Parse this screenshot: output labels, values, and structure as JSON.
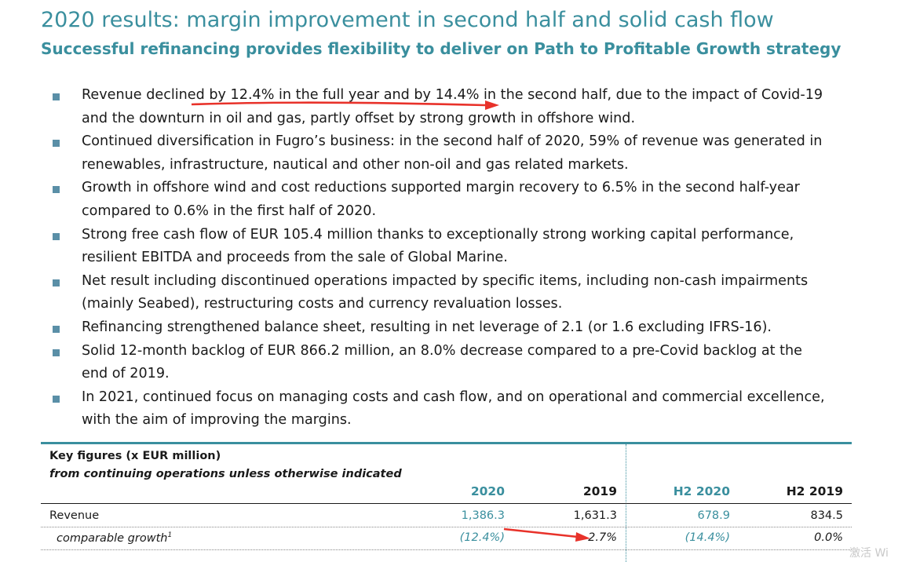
{
  "header": {
    "title": "2020 results: margin improvement in second half and solid cash flow",
    "subtitle": "Successful refinancing provides flexibility to deliver on Path to Profitable Growth strategy"
  },
  "bullets": [
    {
      "line1": "Revenue declined by 12.4% in the full year and by 14.4% in the second half, due to the impact of Covid-19",
      "line2": "and the downturn in oil and gas, partly offset by strong growth in offshore wind."
    },
    {
      "line1": "Continued diversification in Fugro’s business: in the second half of 2020, 59% of revenue was generated in",
      "line2": "renewables, infrastructure, nautical and other non-oil and gas related markets."
    },
    {
      "line1": "Growth in offshore wind and cost reductions supported margin recovery to 6.5% in the second half-year",
      "line2": "compared to 0.6% in the first half of 2020."
    },
    {
      "line1": "Strong free cash flow of EUR 105.4 million thanks to exceptionally strong working capital performance,",
      "line2": "resilient EBITDA and proceeds from the sale of Global Marine."
    },
    {
      "line1": "Net result including discontinued operations impacted by specific items, including non-cash impairments",
      "line2": "(mainly Seabed), restructuring costs and currency revaluation losses."
    },
    {
      "line1": "Refinancing strengthened balance sheet, resulting in net leverage of 2.1 (or 1.6 excluding IFRS-16).",
      "line2": ""
    },
    {
      "line1": "Solid 12-month backlog of EUR 866.2 million, an 8.0% decrease compared to a pre-Covid backlog at the",
      "line2": "end of 2019."
    },
    {
      "line1": "In 2021, continued focus on managing costs and cash flow, and on operational and commercial excellence,",
      "line2": "with the aim of improving the margins."
    }
  ],
  "key_figures": {
    "heading": "Key figures (x EUR million)",
    "subheading": "from continuing operations unless otherwise indicated",
    "columns": [
      "2020",
      "2019",
      "H2 2020",
      "H2 2019"
    ],
    "rows": [
      {
        "label": "Revenue",
        "values": [
          "1,386.3",
          "1,631.3",
          "678.9",
          "834.5"
        ]
      },
      {
        "label": "comparable growth",
        "superscript": "1",
        "values": [
          "(12.4%)",
          "2.7%",
          "(14.4%)",
          "0.0%"
        ]
      }
    ]
  },
  "watermark": "激活 Wi",
  "colors": {
    "accent": "#3a8f9e",
    "bullet": "#5a8fa7",
    "annotation_arrow": "#e8322a"
  }
}
